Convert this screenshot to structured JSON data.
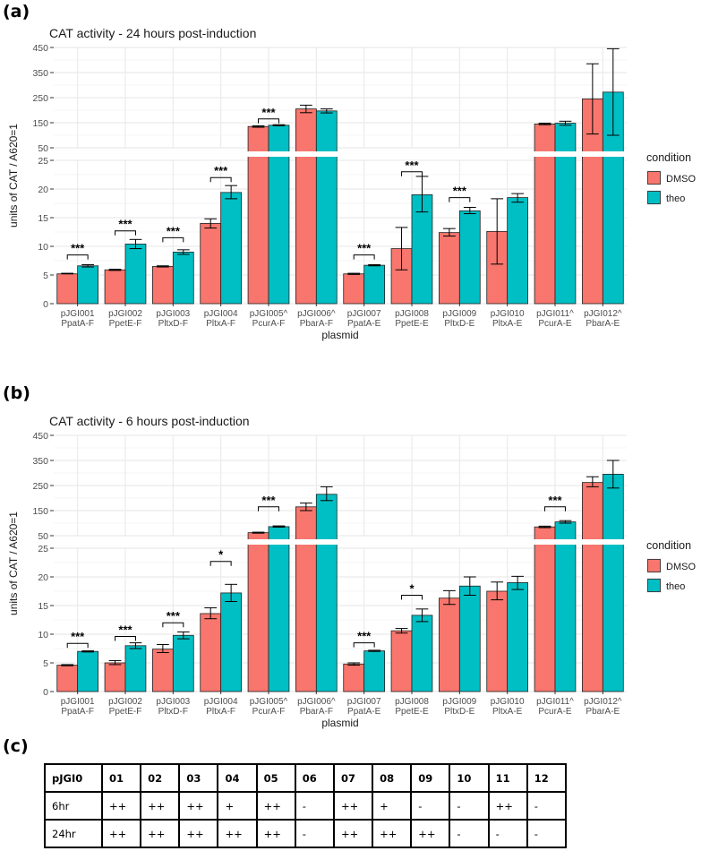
{
  "panels": {
    "a": "(a)",
    "b": "(b)",
    "c": "(c)"
  },
  "colors": {
    "DMSO": "#F8766D",
    "theo": "#00BFC4",
    "grid": "#EBEBEB",
    "axis_text": "#4D4D4D"
  },
  "chart_data": [
    {
      "type": "bar",
      "title": "CAT activity - 24 hours post-induction",
      "xlabel": "plasmid",
      "ylabel": "units of CAT / A620=1",
      "broken_axis": {
        "lower": {
          "ylim": [
            0,
            25
          ],
          "ticks": [
            0,
            5,
            10,
            15,
            20,
            25
          ]
        },
        "upper": {
          "ylim": [
            50,
            450
          ],
          "ticks": [
            50,
            150,
            250,
            350,
            450
          ]
        }
      },
      "legend": {
        "title": "condition",
        "entries": [
          "DMSO",
          "theo"
        ],
        "position": "right"
      },
      "categories": [
        [
          "pJGI001",
          "PpatA-F"
        ],
        [
          "pJGI002",
          "PpetE-F"
        ],
        [
          "pJGI003",
          "PltxD-F"
        ],
        [
          "pJGI004",
          "PltxA-F"
        ],
        [
          "pJGI005^",
          "PcurA-F"
        ],
        [
          "pJGI006^",
          "PbarA-F"
        ],
        [
          "pJGI007",
          "PpatA-E"
        ],
        [
          "pJGI008",
          "PpetE-E"
        ],
        [
          "pJGI009",
          "PltxD-E"
        ],
        [
          "pJGI010",
          "PltxA-E"
        ],
        [
          "pJGI011^",
          "PcurA-E"
        ],
        [
          "pJGI012^",
          "PbarA-E"
        ]
      ],
      "series": [
        {
          "name": "DMSO",
          "values": [
            5.2,
            5.9,
            6.5,
            14.0,
            135,
            205,
            5.2,
            9.6,
            12.4,
            12.6,
            145,
            245
          ],
          "err_low": [
            5.2,
            5.8,
            6.4,
            13.2,
            132,
            190,
            5.1,
            5.9,
            11.8,
            6.9,
            142,
            105
          ],
          "err_high": [
            5.3,
            6.0,
            6.6,
            14.8,
            138,
            220,
            5.3,
            13.3,
            13.1,
            18.3,
            148,
            385
          ]
        },
        {
          "name": "theo",
          "values": [
            6.6,
            10.4,
            9.0,
            19.4,
            140,
            197,
            6.7,
            19.0,
            16.2,
            18.5,
            148,
            272
          ],
          "err_low": [
            6.4,
            9.6,
            8.6,
            18.3,
            138,
            189,
            6.6,
            16.0,
            15.7,
            17.7,
            140,
            100
          ],
          "err_high": [
            6.8,
            11.2,
            9.4,
            20.6,
            142,
            205,
            6.8,
            22.2,
            16.8,
            19.2,
            156,
            445
          ]
        }
      ],
      "significance": [
        {
          "index": 0,
          "label": "***",
          "y": 8.5
        },
        {
          "index": 1,
          "label": "***",
          "y": 12.7
        },
        {
          "index": 2,
          "label": "***",
          "y": 11.5
        },
        {
          "index": 3,
          "label": "***",
          "y": 22.0
        },
        {
          "index": 4,
          "label": "***",
          "y": 165
        },
        {
          "index": 6,
          "label": "***",
          "y": 8.5
        },
        {
          "index": 7,
          "label": "***",
          "y": 23.0
        },
        {
          "index": 8,
          "label": "***",
          "y": 18.5
        }
      ]
    },
    {
      "type": "bar",
      "title": "CAT activity - 6 hours post-induction",
      "xlabel": "plasmid",
      "ylabel": "units of CAT / A620=1",
      "broken_axis": {
        "lower": {
          "ylim": [
            0,
            25
          ],
          "ticks": [
            0,
            5,
            10,
            15,
            20,
            25
          ]
        },
        "upper": {
          "ylim": [
            50,
            450
          ],
          "ticks": [
            50,
            150,
            250,
            350,
            450
          ]
        }
      },
      "legend": {
        "title": "condition",
        "entries": [
          "DMSO",
          "theo"
        ],
        "position": "right"
      },
      "categories": [
        [
          "pJGI001",
          "PpatA-F"
        ],
        [
          "pJGI002",
          "PpetE-F"
        ],
        [
          "pJGI003",
          "PltxD-F"
        ],
        [
          "pJGI004",
          "PltxA-F"
        ],
        [
          "pJGI005^",
          "PcurA-F"
        ],
        [
          "pJGI006^",
          "PbarA-F"
        ],
        [
          "pJGI007",
          "PpatA-E"
        ],
        [
          "pJGI008",
          "PpetE-E"
        ],
        [
          "pJGI009",
          "PltxD-E"
        ],
        [
          "pJGI010",
          "PltxA-E"
        ],
        [
          "pJGI011^",
          "PcurA-E"
        ],
        [
          "pJGI012^",
          "PbarA-E"
        ]
      ],
      "series": [
        {
          "name": "DMSO",
          "values": [
            4.6,
            5.0,
            7.4,
            13.6,
            62,
            165,
            4.8,
            10.6,
            16.3,
            17.5,
            85,
            262
          ],
          "err_low": [
            4.5,
            4.7,
            6.8,
            12.7,
            60,
            150,
            4.6,
            10.2,
            15.2,
            16.0,
            82,
            245
          ],
          "err_high": [
            4.7,
            5.4,
            8.2,
            14.6,
            64,
            180,
            5.0,
            11.0,
            17.6,
            19.1,
            88,
            285
          ]
        },
        {
          "name": "theo",
          "values": [
            7.0,
            8.0,
            9.8,
            17.2,
            86,
            215,
            7.1,
            13.3,
            18.4,
            19.0,
            105,
            295
          ],
          "err_low": [
            6.9,
            7.5,
            9.2,
            15.7,
            84,
            190,
            7.0,
            12.2,
            16.8,
            17.8,
            100,
            240
          ],
          "err_high": [
            7.1,
            8.5,
            10.4,
            18.7,
            89,
            245,
            7.2,
            14.4,
            20.0,
            20.1,
            110,
            350
          ]
        }
      ],
      "significance": [
        {
          "index": 0,
          "label": "***",
          "y": 8.4
        },
        {
          "index": 1,
          "label": "***",
          "y": 9.6
        },
        {
          "index": 2,
          "label": "***",
          "y": 12.0
        },
        {
          "index": 3,
          "label": "*",
          "y": 22.7
        },
        {
          "index": 4,
          "label": "***",
          "y": 165
        },
        {
          "index": 6,
          "label": "***",
          "y": 8.5
        },
        {
          "index": 7,
          "label": "*",
          "y": 16.8
        },
        {
          "index": 10,
          "label": "***",
          "y": 165
        }
      ]
    }
  ],
  "table": {
    "header": [
      "pJGI0",
      "01",
      "02",
      "03",
      "04",
      "05",
      "06",
      "07",
      "08",
      "09",
      "10",
      "11",
      "12"
    ],
    "rows": [
      [
        "6hr",
        "++",
        "++",
        "++",
        "+",
        "++",
        "-",
        "++",
        "+",
        "-",
        "-",
        "++",
        "-"
      ],
      [
        "24hr",
        "++",
        "++",
        "++",
        "++",
        "++",
        "-",
        "++",
        "++",
        "++",
        "-",
        "-",
        "-"
      ]
    ]
  }
}
